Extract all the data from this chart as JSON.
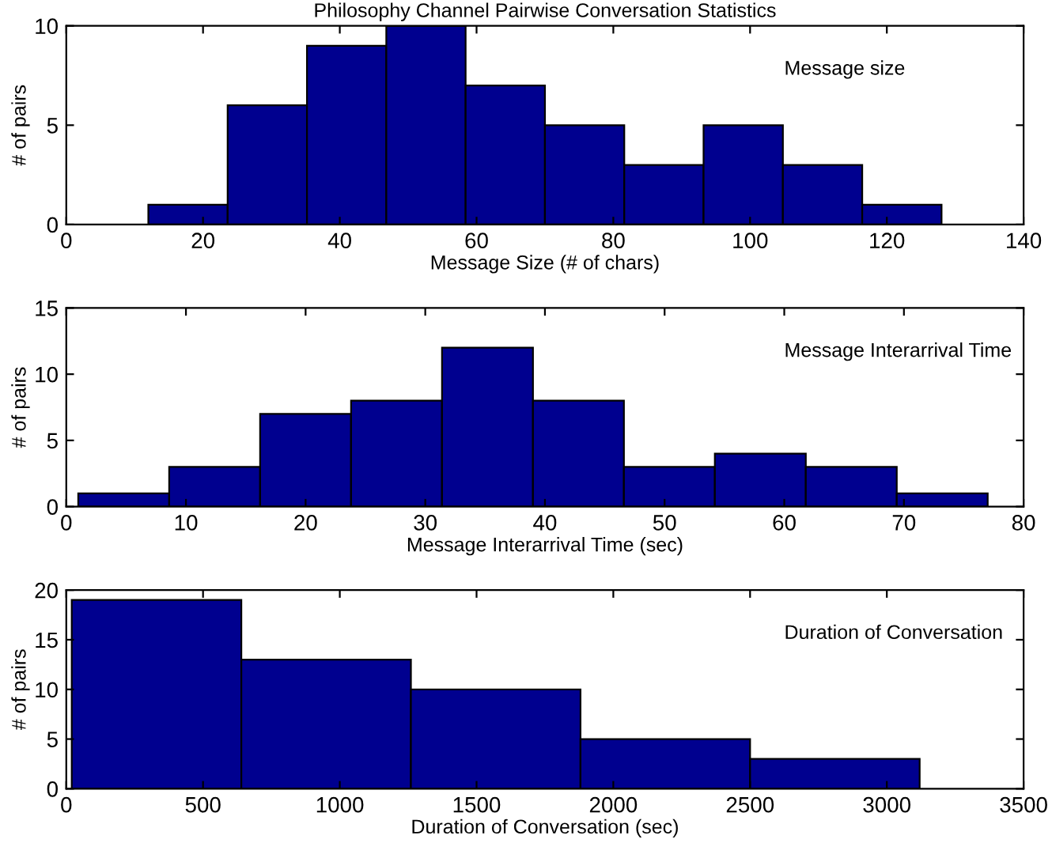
{
  "chart_data": [
    {
      "type": "histogram",
      "title": "Philosophy Channel Pairwise Conversation Statistics",
      "xlabel": "Message Size (# of chars)",
      "ylabel": "# of pairs",
      "annotations": [
        "Message size"
      ],
      "bins": [
        12,
        23.6,
        35.2,
        46.8,
        58.4,
        70,
        81.6,
        93.2,
        104.8,
        116.4,
        128
      ],
      "values": [
        1,
        6,
        9,
        10,
        7,
        5,
        3,
        5,
        3,
        1
      ],
      "color": "#00008f",
      "xlim": [
        0,
        140
      ],
      "xticks": [
        0,
        20,
        40,
        60,
        80,
        100,
        120,
        140
      ],
      "ylim": [
        0,
        10
      ],
      "yticks": [
        0,
        5,
        10
      ]
    },
    {
      "type": "histogram",
      "xlabel": "Message Interarrival Time (sec)",
      "ylabel": "# of pairs",
      "annotations": [
        "Message Interarrival Time"
      ],
      "bins": [
        1,
        8.6,
        16.2,
        23.8,
        31.4,
        39,
        46.6,
        54.2,
        61.8,
        69.4,
        77
      ],
      "values": [
        1,
        3,
        7,
        8,
        12,
        8,
        3,
        4,
        3,
        1
      ],
      "color": "#00008f",
      "xlim": [
        0,
        80
      ],
      "xticks": [
        0,
        10,
        20,
        30,
        40,
        50,
        60,
        70,
        80
      ],
      "ylim": [
        0,
        15
      ],
      "yticks": [
        0,
        5,
        10,
        15
      ]
    },
    {
      "type": "histogram",
      "xlabel": "Duration of Conversation (sec)",
      "ylabel": "# of pairs",
      "annotations": [
        "Duration of Conversation"
      ],
      "bins": [
        20,
        640,
        1260,
        1880,
        2500,
        3120
      ],
      "values": [
        19,
        13,
        10,
        5,
        3
      ],
      "color": "#00008f",
      "xlim": [
        0,
        3500
      ],
      "xticks": [
        0,
        500,
        1000,
        1500,
        2000,
        2500,
        3000,
        3500
      ],
      "ylim": [
        0,
        20
      ],
      "yticks": [
        0,
        5,
        10,
        15,
        20
      ]
    }
  ]
}
